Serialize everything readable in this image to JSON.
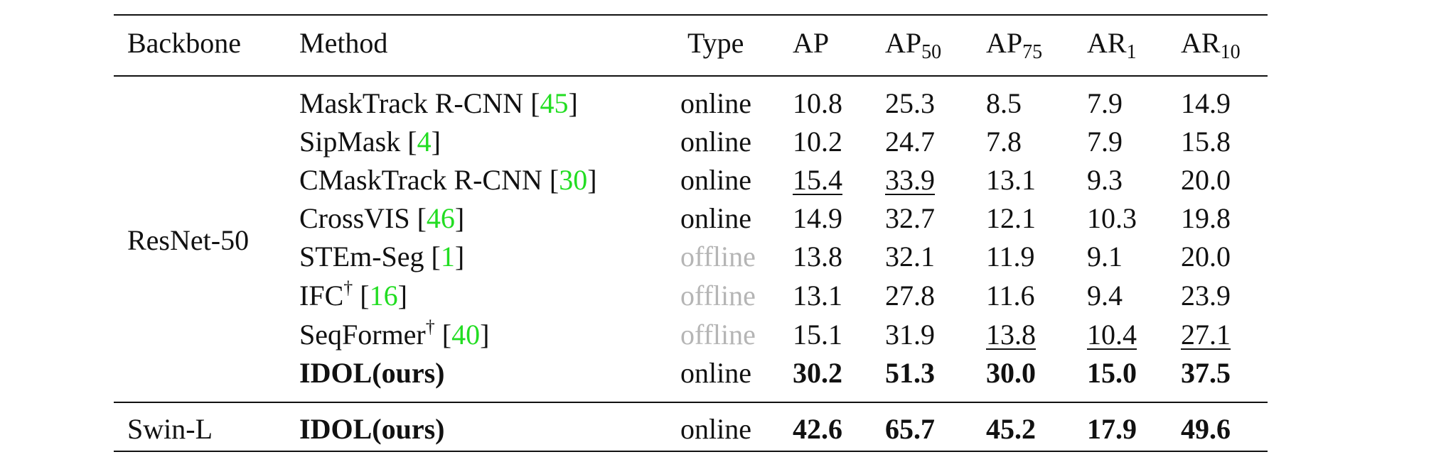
{
  "table": {
    "header": [
      {
        "text": "Backbone"
      },
      {
        "text": "Method"
      },
      {
        "text": "Type"
      },
      {
        "text": "AP"
      },
      {
        "text": "AP",
        "sub": "50"
      },
      {
        "text": "AP",
        "sub": "75"
      },
      {
        "text": "AR",
        "sub": "1"
      },
      {
        "text": "AR",
        "sub": "10"
      }
    ],
    "groups": [
      {
        "backbone": "ResNet-50",
        "rows": [
          {
            "method": "MaskTrack R-CNN",
            "cite": "[45]",
            "type": "online",
            "values": [
              "10.8",
              "25.3",
              "8.5",
              "7.9",
              "14.9"
            ]
          },
          {
            "method": "SipMask",
            "cite": "[4]",
            "type": "online",
            "values": [
              "10.2",
              "24.7",
              "7.8",
              "7.9",
              "15.8"
            ]
          },
          {
            "method": "CMaskTrack R-CNN",
            "cite": "[30]",
            "type": "online",
            "values": [
              "15.4",
              "33.9",
              "13.1",
              "9.3",
              "20.0"
            ],
            "underline": [
              0,
              1
            ]
          },
          {
            "method": "CrossVIS",
            "cite": "[46]",
            "type": "online",
            "values": [
              "14.9",
              "32.7",
              "12.1",
              "10.3",
              "19.8"
            ]
          },
          {
            "method": "STEm-Seg",
            "cite": "[1]",
            "type": "offline",
            "values": [
              "13.8",
              "32.1",
              "11.9",
              "9.1",
              "20.0"
            ]
          },
          {
            "method": "IFC",
            "sup": "†",
            "cite": "[16]",
            "type": "offline",
            "values": [
              "13.1",
              "27.8",
              "11.6",
              "9.4",
              "23.9"
            ]
          },
          {
            "method": "SeqFormer",
            "sup": "†",
            "cite": "[40]",
            "type": "offline",
            "values": [
              "15.1",
              "31.9",
              "13.8",
              "10.4",
              "27.1"
            ],
            "underline": [
              2,
              3,
              4
            ]
          },
          {
            "method": "IDOL(ours)",
            "type": "online",
            "values": [
              "30.2",
              "51.3",
              "30.0",
              "15.0",
              "37.5"
            ],
            "bold": true
          }
        ]
      },
      {
        "backbone": "Swin-L",
        "rows": [
          {
            "method": "IDOL(ours)",
            "type": "online",
            "values": [
              "42.6",
              "65.7",
              "45.2",
              "17.9",
              "49.6"
            ],
            "bold": true
          }
        ]
      }
    ]
  }
}
